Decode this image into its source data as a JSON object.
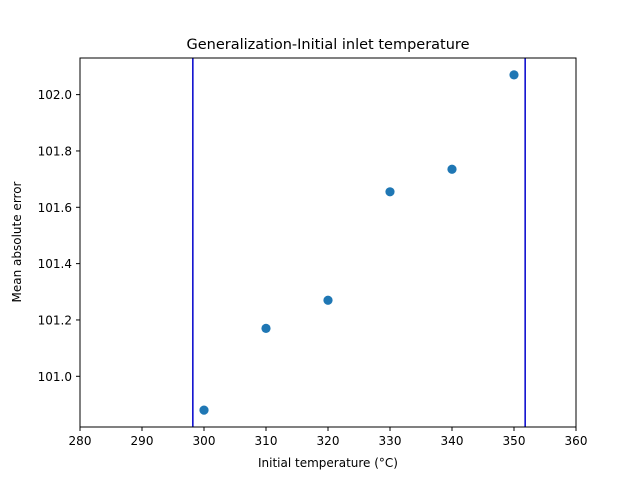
{
  "chart_data": {
    "type": "scatter",
    "title": "Generalization-Initial inlet temperature",
    "xlabel": "Initial temperature (°C)",
    "ylabel": "Mean absolute error",
    "xlim": [
      280,
      360
    ],
    "ylim": [
      100.82,
      102.13
    ],
    "xticks": [
      280,
      290,
      300,
      310,
      320,
      330,
      340,
      350,
      360
    ],
    "yticks": [
      101.0,
      101.2,
      101.4,
      101.6,
      101.8,
      102.0
    ],
    "ytick_labels": [
      "101.0",
      "101.2",
      "101.4",
      "101.6",
      "101.8",
      "102.0"
    ],
    "grid": false,
    "legend": "none",
    "series": [
      {
        "color": "#1f77b4",
        "x": [
          300,
          310,
          320,
          330,
          340,
          350
        ],
        "y": [
          100.88,
          101.17,
          101.27,
          101.655,
          101.735,
          102.07
        ]
      }
    ],
    "vlines": [
      {
        "x": 298.2,
        "color": "#0000cc"
      },
      {
        "x": 351.8,
        "color": "#0000cc"
      }
    ]
  }
}
